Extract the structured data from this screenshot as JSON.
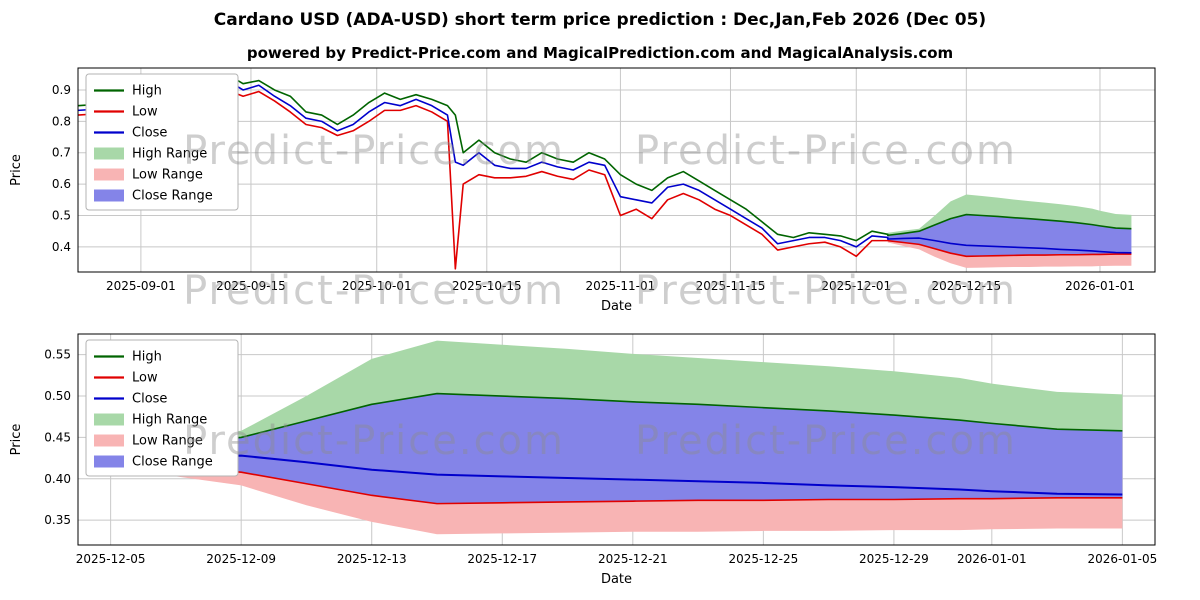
{
  "title": "Cardano USD (ADA-USD) short term price prediction : Dec,Jan,Feb 2026 (Dec 05)",
  "subtitle": "powered by Predict-Price.com and MagicalPrediction.com and MagicalAnalysis.com",
  "watermark": "Predict-Price.com",
  "colors": {
    "high_line": "#006400",
    "low_line": "#e00000",
    "close_line": "#0000cc",
    "high_range": "#a8d8a8",
    "low_range": "#f8b4b4",
    "close_range": "#8484e8",
    "grid": "#c8c8c8"
  },
  "chart_data": [
    {
      "type": "line",
      "title": "historical prices with short-term prediction ranges",
      "xlabel": "Date",
      "ylabel": "Price",
      "x_range": [
        "2025-08-24",
        "2026-01-08"
      ],
      "y_range": [
        0.32,
        0.97
      ],
      "y_ticks": [
        "0.4",
        "0.5",
        "0.6",
        "0.7",
        "0.8",
        "0.9"
      ],
      "x_ticks": [
        "2025-09-01",
        "2025-09-15",
        "2025-10-01",
        "2025-10-15",
        "2025-11-01",
        "2025-11-15",
        "2025-12-01",
        "2025-12-15",
        "2026-01-01"
      ],
      "x": [
        "2025-08-24",
        "2025-08-27",
        "2025-08-29",
        "2025-08-31",
        "2025-09-02",
        "2025-09-04",
        "2025-09-06",
        "2025-09-08",
        "2025-09-10",
        "2025-09-12",
        "2025-09-14",
        "2025-09-16",
        "2025-09-18",
        "2025-09-20",
        "2025-09-22",
        "2025-09-24",
        "2025-09-26",
        "2025-09-28",
        "2025-09-30",
        "2025-10-02",
        "2025-10-04",
        "2025-10-06",
        "2025-10-08",
        "2025-10-10",
        "2025-10-11",
        "2025-10-12",
        "2025-10-14",
        "2025-10-16",
        "2025-10-18",
        "2025-10-20",
        "2025-10-22",
        "2025-10-24",
        "2025-10-26",
        "2025-10-28",
        "2025-10-30",
        "2025-11-01",
        "2025-11-03",
        "2025-11-05",
        "2025-11-07",
        "2025-11-09",
        "2025-11-11",
        "2025-11-13",
        "2025-11-15",
        "2025-11-17",
        "2025-11-19",
        "2025-11-21",
        "2025-11-23",
        "2025-11-25",
        "2025-11-27",
        "2025-11-29",
        "2025-12-01",
        "2025-12-03",
        "2025-12-05",
        "2025-12-05",
        "2025-12-07",
        "2025-12-09",
        "2025-12-11",
        "2025-12-13",
        "2025-12-15",
        "2025-12-17",
        "2025-12-19",
        "2025-12-21",
        "2025-12-23",
        "2025-12-25",
        "2025-12-27",
        "2025-12-29",
        "2025-12-31",
        "2026-01-01",
        "2026-01-03",
        "2026-01-05"
      ],
      "lines": [
        {
          "name": "High",
          "color": "#006400",
          "y": [
            0.85,
            0.855,
            0.845,
            0.86,
            0.85,
            0.865,
            0.875,
            0.89,
            0.91,
            0.95,
            0.92,
            0.93,
            0.9,
            0.88,
            0.83,
            0.82,
            0.79,
            0.82,
            0.86,
            0.89,
            0.87,
            0.885,
            0.87,
            0.85,
            0.82,
            0.7,
            0.74,
            0.7,
            0.68,
            0.67,
            0.7,
            0.68,
            0.67,
            0.7,
            0.68,
            0.63,
            0.6,
            0.58,
            0.62,
            0.64,
            0.61,
            0.58,
            0.55,
            0.52,
            0.48,
            0.44,
            0.43,
            0.445,
            0.44,
            0.435,
            0.42,
            0.45,
            0.44,
            0.437,
            0.443,
            0.45,
            0.47,
            0.49,
            0.503,
            0.5,
            0.497,
            0.493,
            0.49,
            0.486,
            0.482,
            0.477,
            0.471,
            0.467,
            0.46,
            0.458
          ]
        },
        {
          "name": "Low",
          "color": "#e00000",
          "y": [
            0.82,
            0.825,
            0.815,
            0.83,
            0.82,
            0.835,
            0.845,
            0.86,
            0.875,
            0.9,
            0.88,
            0.895,
            0.865,
            0.83,
            0.79,
            0.78,
            0.755,
            0.77,
            0.8,
            0.835,
            0.835,
            0.85,
            0.83,
            0.8,
            0.33,
            0.6,
            0.63,
            0.62,
            0.62,
            0.625,
            0.64,
            0.625,
            0.615,
            0.645,
            0.63,
            0.5,
            0.52,
            0.49,
            0.55,
            0.57,
            0.55,
            0.52,
            0.5,
            0.47,
            0.44,
            0.39,
            0.4,
            0.41,
            0.415,
            0.4,
            0.37,
            0.42,
            0.42,
            0.42,
            0.414,
            0.408,
            0.394,
            0.38,
            0.37,
            0.371,
            0.372,
            0.373,
            0.374,
            0.374,
            0.375,
            0.375,
            0.376,
            0.376,
            0.377,
            0.377
          ]
        },
        {
          "name": "Close",
          "color": "#0000cc",
          "y": [
            0.835,
            0.84,
            0.83,
            0.845,
            0.835,
            0.85,
            0.86,
            0.875,
            0.89,
            0.93,
            0.9,
            0.915,
            0.88,
            0.85,
            0.81,
            0.8,
            0.77,
            0.79,
            0.83,
            0.86,
            0.85,
            0.87,
            0.85,
            0.82,
            0.67,
            0.66,
            0.7,
            0.66,
            0.65,
            0.65,
            0.67,
            0.655,
            0.645,
            0.67,
            0.66,
            0.56,
            0.55,
            0.54,
            0.59,
            0.6,
            0.58,
            0.55,
            0.52,
            0.49,
            0.46,
            0.41,
            0.42,
            0.43,
            0.43,
            0.42,
            0.4,
            0.435,
            0.43,
            0.425,
            0.427,
            0.428,
            0.42,
            0.411,
            0.405,
            0.403,
            0.401,
            0.399,
            0.397,
            0.395,
            0.392,
            0.39,
            0.387,
            0.385,
            0.382,
            0.381
          ]
        }
      ],
      "bands": [
        {
          "name": "High Range",
          "color": "#a8d8a8",
          "x": [
            "2025-12-05",
            "2025-12-07",
            "2025-12-09",
            "2025-12-11",
            "2025-12-13",
            "2025-12-15",
            "2025-12-17",
            "2025-12-19",
            "2025-12-21",
            "2025-12-23",
            "2025-12-25",
            "2025-12-27",
            "2025-12-29",
            "2025-12-31",
            "2026-01-01",
            "2026-01-03",
            "2026-01-05"
          ],
          "upper": [
            0.445,
            0.452,
            0.458,
            0.5,
            0.545,
            0.567,
            0.562,
            0.557,
            0.551,
            0.546,
            0.541,
            0.536,
            0.53,
            0.522,
            0.515,
            0.505,
            0.502
          ],
          "lower": [
            0.437,
            0.443,
            0.45,
            0.47,
            0.49,
            0.503,
            0.5,
            0.497,
            0.493,
            0.49,
            0.486,
            0.482,
            0.477,
            0.471,
            0.467,
            0.46,
            0.458
          ]
        },
        {
          "name": "Low Range",
          "color": "#f8b4b4",
          "x": [
            "2025-12-05",
            "2025-12-07",
            "2025-12-09",
            "2025-12-11",
            "2025-12-13",
            "2025-12-15",
            "2025-12-17",
            "2025-12-19",
            "2025-12-21",
            "2025-12-23",
            "2025-12-25",
            "2025-12-27",
            "2025-12-29",
            "2025-12-31",
            "2026-01-01",
            "2026-01-03",
            "2026-01-05"
          ],
          "upper": [
            0.42,
            0.414,
            0.408,
            0.394,
            0.38,
            0.37,
            0.371,
            0.372,
            0.373,
            0.374,
            0.374,
            0.375,
            0.375,
            0.376,
            0.376,
            0.377,
            0.377
          ],
          "lower": [
            0.414,
            0.403,
            0.392,
            0.368,
            0.348,
            0.333,
            0.334,
            0.335,
            0.336,
            0.336,
            0.337,
            0.337,
            0.338,
            0.338,
            0.339,
            0.34,
            0.34
          ]
        },
        {
          "name": "Close Range",
          "color": "#8484e8",
          "x": [
            "2025-12-05",
            "2025-12-07",
            "2025-12-09",
            "2025-12-11",
            "2025-12-13",
            "2025-12-15",
            "2025-12-17",
            "2025-12-19",
            "2025-12-21",
            "2025-12-23",
            "2025-12-25",
            "2025-12-27",
            "2025-12-29",
            "2025-12-31",
            "2026-01-01",
            "2026-01-03",
            "2026-01-05"
          ],
          "upper": [
            0.437,
            0.443,
            0.45,
            0.47,
            0.49,
            0.503,
            0.5,
            0.497,
            0.493,
            0.49,
            0.486,
            0.482,
            0.477,
            0.471,
            0.467,
            0.46,
            0.458
          ],
          "lower": [
            0.42,
            0.414,
            0.408,
            0.394,
            0.38,
            0.37,
            0.371,
            0.372,
            0.373,
            0.374,
            0.374,
            0.375,
            0.375,
            0.376,
            0.376,
            0.377,
            0.377
          ]
        }
      ],
      "legend": [
        {
          "label": "High",
          "type": "line",
          "color": "#006400"
        },
        {
          "label": "Low",
          "type": "line",
          "color": "#e00000"
        },
        {
          "label": "Close",
          "type": "line",
          "color": "#0000cc"
        },
        {
          "label": "High Range",
          "type": "patch",
          "color": "#a8d8a8"
        },
        {
          "label": "Low Range",
          "type": "patch",
          "color": "#f8b4b4"
        },
        {
          "label": "Close Range",
          "type": "patch",
          "color": "#8484e8"
        }
      ]
    },
    {
      "type": "line",
      "title": "prediction detail Dec 2025 - Jan 2026",
      "xlabel": "Date",
      "ylabel": "Price",
      "x_range": [
        "2025-12-04",
        "2026-01-06"
      ],
      "y_range": [
        0.32,
        0.575
      ],
      "y_ticks": [
        "0.35",
        "0.40",
        "0.45",
        "0.50",
        "0.55"
      ],
      "x_ticks": [
        "2025-12-05",
        "2025-12-09",
        "2025-12-13",
        "2025-12-17",
        "2025-12-21",
        "2025-12-25",
        "2025-12-29",
        "2026-01-01",
        "2026-01-05"
      ],
      "x": [
        "2025-12-05",
        "2025-12-07",
        "2025-12-09",
        "2025-12-11",
        "2025-12-13",
        "2025-12-15",
        "2025-12-17",
        "2025-12-19",
        "2025-12-21",
        "2025-12-23",
        "2025-12-25",
        "2025-12-27",
        "2025-12-29",
        "2025-12-31",
        "2026-01-01",
        "2026-01-03",
        "2026-01-05"
      ],
      "lines": [
        {
          "name": "High",
          "color": "#006400",
          "y": [
            0.437,
            0.443,
            0.45,
            0.47,
            0.49,
            0.503,
            0.5,
            0.497,
            0.493,
            0.49,
            0.486,
            0.482,
            0.477,
            0.471,
            0.467,
            0.46,
            0.458
          ]
        },
        {
          "name": "Low",
          "color": "#e00000",
          "y": [
            0.42,
            0.414,
            0.408,
            0.394,
            0.38,
            0.37,
            0.371,
            0.372,
            0.373,
            0.374,
            0.374,
            0.375,
            0.375,
            0.376,
            0.376,
            0.377,
            0.377
          ]
        },
        {
          "name": "Close",
          "color": "#0000cc",
          "width": 2,
          "y": [
            0.425,
            0.427,
            0.428,
            0.42,
            0.411,
            0.405,
            0.403,
            0.401,
            0.399,
            0.397,
            0.395,
            0.392,
            0.39,
            0.387,
            0.385,
            0.382,
            0.381
          ]
        }
      ],
      "bands": [
        {
          "name": "High Range",
          "color": "#a8d8a8",
          "x": [
            "2025-12-05",
            "2025-12-07",
            "2025-12-09",
            "2025-12-11",
            "2025-12-13",
            "2025-12-15",
            "2025-12-17",
            "2025-12-19",
            "2025-12-21",
            "2025-12-23",
            "2025-12-25",
            "2025-12-27",
            "2025-12-29",
            "2025-12-31",
            "2026-01-01",
            "2026-01-03",
            "2026-01-05"
          ],
          "upper": [
            0.445,
            0.452,
            0.458,
            0.5,
            0.545,
            0.567,
            0.562,
            0.557,
            0.551,
            0.546,
            0.541,
            0.536,
            0.53,
            0.522,
            0.515,
            0.505,
            0.502
          ],
          "lower": [
            0.437,
            0.443,
            0.45,
            0.47,
            0.49,
            0.503,
            0.5,
            0.497,
            0.493,
            0.49,
            0.486,
            0.482,
            0.477,
            0.471,
            0.467,
            0.46,
            0.458
          ]
        },
        {
          "name": "Low Range",
          "color": "#f8b4b4",
          "x": [
            "2025-12-05",
            "2025-12-07",
            "2025-12-09",
            "2025-12-11",
            "2025-12-13",
            "2025-12-15",
            "2025-12-17",
            "2025-12-19",
            "2025-12-21",
            "2025-12-23",
            "2025-12-25",
            "2025-12-27",
            "2025-12-29",
            "2025-12-31",
            "2026-01-01",
            "2026-01-03",
            "2026-01-05"
          ],
          "upper": [
            0.42,
            0.414,
            0.408,
            0.394,
            0.38,
            0.37,
            0.371,
            0.372,
            0.373,
            0.374,
            0.374,
            0.375,
            0.375,
            0.376,
            0.376,
            0.377,
            0.377
          ],
          "lower": [
            0.414,
            0.403,
            0.392,
            0.368,
            0.348,
            0.333,
            0.334,
            0.335,
            0.336,
            0.336,
            0.337,
            0.337,
            0.338,
            0.338,
            0.339,
            0.34,
            0.34
          ]
        },
        {
          "name": "Close Range",
          "color": "#8484e8",
          "x": [
            "2025-12-05",
            "2025-12-07",
            "2025-12-09",
            "2025-12-11",
            "2025-12-13",
            "2025-12-15",
            "2025-12-17",
            "2025-12-19",
            "2025-12-21",
            "2025-12-23",
            "2025-12-25",
            "2025-12-27",
            "2025-12-29",
            "2025-12-31",
            "2026-01-01",
            "2026-01-03",
            "2026-01-05"
          ],
          "upper": [
            0.437,
            0.443,
            0.45,
            0.47,
            0.49,
            0.503,
            0.5,
            0.497,
            0.493,
            0.49,
            0.486,
            0.482,
            0.477,
            0.471,
            0.467,
            0.46,
            0.458
          ],
          "lower": [
            0.42,
            0.414,
            0.408,
            0.394,
            0.38,
            0.37,
            0.371,
            0.372,
            0.373,
            0.374,
            0.374,
            0.375,
            0.375,
            0.376,
            0.376,
            0.377,
            0.377
          ]
        }
      ],
      "legend": [
        {
          "label": "High",
          "type": "line",
          "color": "#006400"
        },
        {
          "label": "Low",
          "type": "line",
          "color": "#e00000"
        },
        {
          "label": "Close",
          "type": "line",
          "color": "#0000cc"
        },
        {
          "label": "High Range",
          "type": "patch",
          "color": "#a8d8a8"
        },
        {
          "label": "Low Range",
          "type": "patch",
          "color": "#f8b4b4"
        },
        {
          "label": "Close Range",
          "type": "patch",
          "color": "#8484e8"
        }
      ]
    }
  ]
}
